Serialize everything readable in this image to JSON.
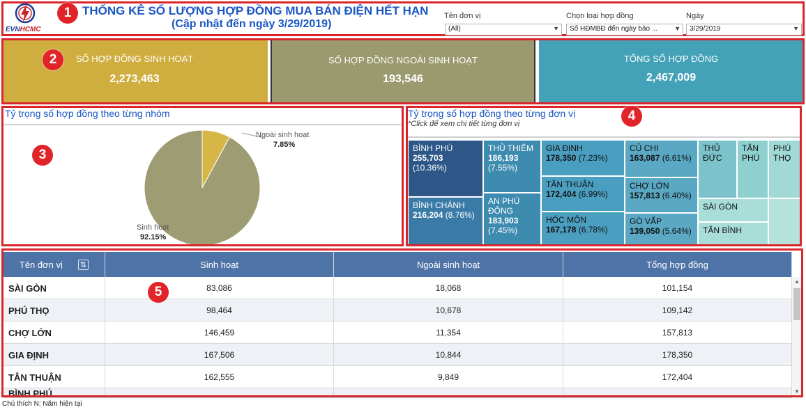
{
  "header": {
    "logo_text_a": "EVN",
    "logo_text_b": "HCMC",
    "title": "THỐNG KÊ SỐ LƯỢNG HỢP ĐỒNG MUA BÁN ĐIỆN HẾT HẠN",
    "subtitle": "(Cập nhật đến ngày 3/29/2019)"
  },
  "filters": {
    "unit_label": "Tên đơn vị",
    "unit_value": "(All)",
    "type_label": "Chọn loại hợp đồng",
    "type_value": "Số HĐMBĐ đến ngày bảo ...",
    "date_label": "Ngày",
    "date_value": "3/29/2019"
  },
  "kpis": [
    {
      "label": "SỐ HỢP ĐỒNG SINH HOẠT",
      "value": "2,273,463",
      "color": "#cfad3e"
    },
    {
      "label": "SỐ HỢP ĐỒNG NGOÀI SINH HOẠT",
      "value": "193,546",
      "color": "#9a9a6e"
    },
    {
      "label": "TỔNG SỐ HỢP ĐỒNG",
      "value": "2,467,009",
      "color": "#43a1b8"
    }
  ],
  "pie": {
    "title": "Tỷ trọng số hợp đồng theo từng nhóm",
    "slices": [
      {
        "label": "Ngoài sinh hoạt",
        "pct_text": "7.85%",
        "value": 7.85,
        "color": "#d7b648"
      },
      {
        "label": "Sinh hoạt",
        "pct_text": "92.15%",
        "value": 92.15,
        "color": "#9d9c72"
      }
    ]
  },
  "treemap": {
    "title": "Tỷ trọng số hợp đồng theo từng đơn vị",
    "subtitle": "*Click để xem chi tiết từng đơn vị",
    "tiles": [
      {
        "name": "BÌNH PHÚ",
        "value": "255,703",
        "pct": "(10.36%)"
      },
      {
        "name": "BÌNH CHÁNH",
        "value": "216,204",
        "pct": "(8.76%)"
      },
      {
        "name": "THỦ THIÊM",
        "value": "186,193",
        "pct": "(7.55%)"
      },
      {
        "name": "AN PHÚ ĐÔNG",
        "value": "183,903",
        "pct": "(7.45%)"
      },
      {
        "name": "GIA ĐỊNH",
        "value": "178,350",
        "pct": "(7.23%)"
      },
      {
        "name": "TÂN THUẬN",
        "value": "172,404",
        "pct": "(6.99%)"
      },
      {
        "name": "HÓC MÔN",
        "value": "167,178",
        "pct": "(6.78%)"
      },
      {
        "name": "CỦ CHI",
        "value": "163,087",
        "pct": "(6.61%)"
      },
      {
        "name": "CHỢ LỚN",
        "value": "157,813",
        "pct": "(6.40%)"
      },
      {
        "name": "GÒ VẤP",
        "value": "139,050",
        "pct": "(5.64%)"
      },
      {
        "name": "THỦ ĐỨC"
      },
      {
        "name": "TÂN PHÚ"
      },
      {
        "name": "PHÚ THỌ"
      },
      {
        "name": "SÀI GÒN"
      },
      {
        "name": "TÂN BÌNH"
      }
    ]
  },
  "table": {
    "columns": [
      "Tên đơn vị",
      "Sinh hoạt",
      "Ngoài sinh hoạt",
      "Tổng hợp đồng"
    ],
    "rows": [
      [
        "SÀI GÒN",
        "83,086",
        "18,068",
        "101,154"
      ],
      [
        "PHÚ THỌ",
        "98,464",
        "10,678",
        "109,142"
      ],
      [
        "CHỢ LỚN",
        "146,459",
        "11,354",
        "157,813"
      ],
      [
        "GIA ĐỊNH",
        "167,506",
        "10,844",
        "178,350"
      ],
      [
        "TÂN THUẬN",
        "162,555",
        "9,849",
        "172,404"
      ],
      [
        "BÌNH PHÚ",
        "",
        "",
        ""
      ]
    ]
  },
  "footnote": "Chú thích  N: Năm hiện tại",
  "markers": [
    "1",
    "2",
    "3",
    "4",
    "5"
  ]
}
